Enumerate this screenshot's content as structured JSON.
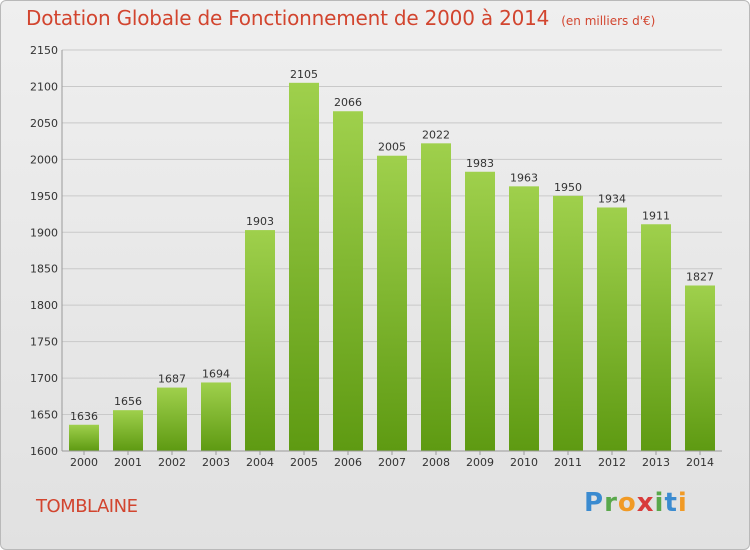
{
  "header": {
    "title": "Dotation Globale de Fonctionnement de 2000 à 2014",
    "unit": "(en milliers d'€)"
  },
  "footer": {
    "city": "TOMBLAINE",
    "brand": "Proxiti"
  },
  "colors": {
    "title": "#d2452f",
    "bar_top": "#9fd04c",
    "bar_bottom": "#5e9a12"
  },
  "chart_data": {
    "type": "bar",
    "title": "Dotation Globale de Fonctionnement de 2000 à 2014",
    "subtitle": "(en milliers d'€)",
    "categories": [
      "2000",
      "2001",
      "2002",
      "2003",
      "2004",
      "2005",
      "2006",
      "2007",
      "2008",
      "2009",
      "2010",
      "2011",
      "2012",
      "2013",
      "2014"
    ],
    "values": [
      1636,
      1656,
      1687,
      1694,
      1903,
      2105,
      2066,
      2005,
      2022,
      1983,
      1963,
      1950,
      1934,
      1911,
      1827
    ],
    "ylim": [
      1600,
      2150
    ],
    "yticks": [
      1600,
      1650,
      1700,
      1750,
      1800,
      1850,
      1900,
      1950,
      2000,
      2050,
      2100,
      2150
    ],
    "grid": true,
    "legend": "none"
  }
}
